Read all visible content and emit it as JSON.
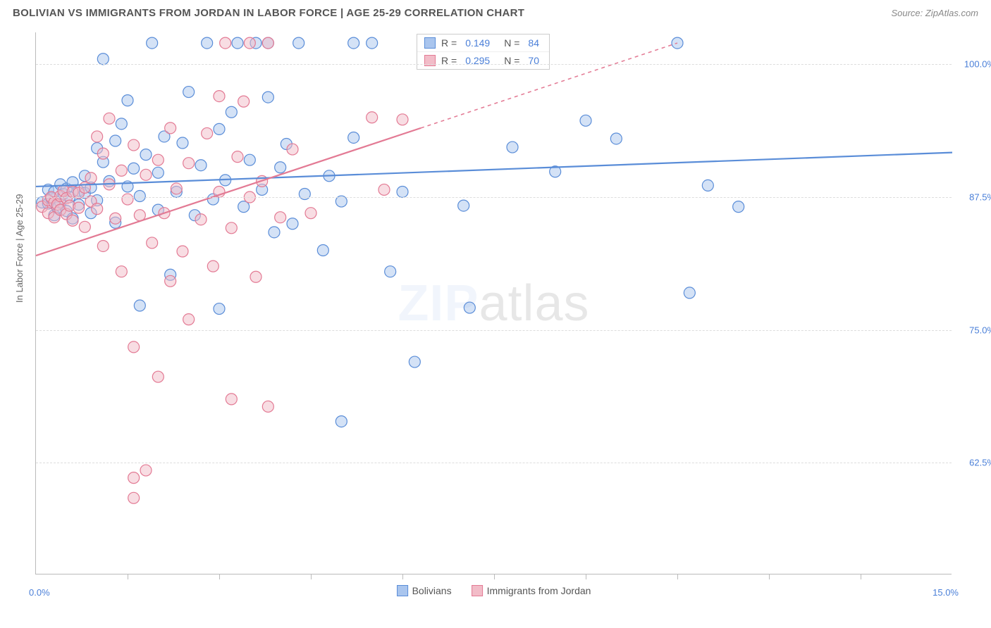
{
  "header": {
    "title": "BOLIVIAN VS IMMIGRANTS FROM JORDAN IN LABOR FORCE | AGE 25-29 CORRELATION CHART",
    "source": "Source: ZipAtlas.com"
  },
  "chart": {
    "type": "scatter",
    "ylabel": "In Labor Force | Age 25-29",
    "background_color": "#ffffff",
    "grid_color": "#dddddd",
    "axis_color": "#bbbbbb",
    "xlim": [
      0.0,
      15.0
    ],
    "ylim": [
      52.0,
      103.0
    ],
    "x_min_label": "0.0%",
    "x_max_label": "15.0%",
    "y_ticks": [
      {
        "v": 62.5,
        "label": "62.5%"
      },
      {
        "v": 75.0,
        "label": "75.0%"
      },
      {
        "v": 87.5,
        "label": "87.5%"
      },
      {
        "v": 100.0,
        "label": "100.0%"
      }
    ],
    "x_ticks_minor": [
      1.5,
      3.0,
      4.5,
      6.0,
      7.5,
      9.0,
      10.5,
      12.0,
      13.5
    ],
    "marker_radius": 8,
    "marker_opacity": 0.5,
    "line_width": 2.2,
    "watermark": {
      "bold": "ZIP",
      "rest": "atlas"
    },
    "stats": [
      {
        "color_fill": "#a9c5ee",
        "color_stroke": "#5a8dd8",
        "R_label": "R =",
        "R": "0.149",
        "N_label": "N =",
        "N": "84"
      },
      {
        "color_fill": "#f2bcc8",
        "color_stroke": "#e37a94",
        "R_label": "R =",
        "R": "0.295",
        "N_label": "N =",
        "N": "70"
      }
    ],
    "legend": [
      {
        "color_fill": "#a9c5ee",
        "color_stroke": "#5a8dd8",
        "label": "Bolivians"
      },
      {
        "color_fill": "#f2bcc8",
        "color_stroke": "#e37a94",
        "label": "Immigrants from Jordan"
      }
    ],
    "series": [
      {
        "name": "Bolivians",
        "color_fill": "#a9c5ee",
        "color_stroke": "#5a8dd8",
        "trend": {
          "x1": 0.0,
          "y1": 88.5,
          "x2": 15.0,
          "y2": 91.7,
          "dash_from_x": null
        },
        "points": [
          [
            0.1,
            87.0
          ],
          [
            0.2,
            88.2
          ],
          [
            0.2,
            86.9
          ],
          [
            0.25,
            87.4
          ],
          [
            0.3,
            88.0
          ],
          [
            0.3,
            85.8
          ],
          [
            0.35,
            86.5
          ],
          [
            0.4,
            88.7
          ],
          [
            0.4,
            87.0
          ],
          [
            0.45,
            87.8
          ],
          [
            0.5,
            88.3
          ],
          [
            0.5,
            86.2
          ],
          [
            0.55,
            87.5
          ],
          [
            0.6,
            88.9
          ],
          [
            0.6,
            85.5
          ],
          [
            0.7,
            88.1
          ],
          [
            0.7,
            86.8
          ],
          [
            0.8,
            87.9
          ],
          [
            0.8,
            89.5
          ],
          [
            0.9,
            86.0
          ],
          [
            0.9,
            88.4
          ],
          [
            1.0,
            92.1
          ],
          [
            1.0,
            87.2
          ],
          [
            1.1,
            90.8
          ],
          [
            1.1,
            100.5
          ],
          [
            1.2,
            89.0
          ],
          [
            1.3,
            92.8
          ],
          [
            1.3,
            85.1
          ],
          [
            1.4,
            94.4
          ],
          [
            1.5,
            88.5
          ],
          [
            1.5,
            96.6
          ],
          [
            1.6,
            90.2
          ],
          [
            1.7,
            87.6
          ],
          [
            1.7,
            77.3
          ],
          [
            1.8,
            91.5
          ],
          [
            1.9,
            102.0
          ],
          [
            2.0,
            86.3
          ],
          [
            2.0,
            89.8
          ],
          [
            2.1,
            93.2
          ],
          [
            2.2,
            80.2
          ],
          [
            2.3,
            88.0
          ],
          [
            2.4,
            92.6
          ],
          [
            2.5,
            97.4
          ],
          [
            2.6,
            85.8
          ],
          [
            2.7,
            90.5
          ],
          [
            2.8,
            102.0
          ],
          [
            2.9,
            87.3
          ],
          [
            3.0,
            93.9
          ],
          [
            3.0,
            77.0
          ],
          [
            3.1,
            89.1
          ],
          [
            3.2,
            95.5
          ],
          [
            3.3,
            102.0
          ],
          [
            3.4,
            86.6
          ],
          [
            3.5,
            91.0
          ],
          [
            3.6,
            102.0
          ],
          [
            3.7,
            88.2
          ],
          [
            3.8,
            96.9
          ],
          [
            3.8,
            102.0
          ],
          [
            3.9,
            84.2
          ],
          [
            4.0,
            90.3
          ],
          [
            4.1,
            92.5
          ],
          [
            4.2,
            85.0
          ],
          [
            4.3,
            102.0
          ],
          [
            4.4,
            87.8
          ],
          [
            4.7,
            82.5
          ],
          [
            4.8,
            89.5
          ],
          [
            5.0,
            87.1
          ],
          [
            5.0,
            66.4
          ],
          [
            5.2,
            93.1
          ],
          [
            5.2,
            102.0
          ],
          [
            5.5,
            102.0
          ],
          [
            5.8,
            80.5
          ],
          [
            6.0,
            88.0
          ],
          [
            6.2,
            72.0
          ],
          [
            7.0,
            86.7
          ],
          [
            7.1,
            77.1
          ],
          [
            7.8,
            92.2
          ],
          [
            8.5,
            89.9
          ],
          [
            9.0,
            94.7
          ],
          [
            9.5,
            93.0
          ],
          [
            10.5,
            102.0
          ],
          [
            10.7,
            78.5
          ],
          [
            11.0,
            88.6
          ],
          [
            11.5,
            86.6
          ]
        ]
      },
      {
        "name": "Immigrants from Jordan",
        "color_fill": "#f2bcc8",
        "color_stroke": "#e37a94",
        "trend": {
          "x1": 0.0,
          "y1": 82.0,
          "x2": 10.5,
          "y2": 102.0,
          "dash_from_x": 6.3
        },
        "points": [
          [
            0.1,
            86.6
          ],
          [
            0.2,
            87.2
          ],
          [
            0.2,
            86.0
          ],
          [
            0.25,
            87.5
          ],
          [
            0.3,
            87.0
          ],
          [
            0.3,
            85.6
          ],
          [
            0.35,
            86.8
          ],
          [
            0.4,
            87.6
          ],
          [
            0.4,
            86.3
          ],
          [
            0.45,
            88.1
          ],
          [
            0.5,
            87.4
          ],
          [
            0.5,
            85.9
          ],
          [
            0.55,
            86.7
          ],
          [
            0.6,
            88.0
          ],
          [
            0.6,
            85.3
          ],
          [
            0.7,
            87.9
          ],
          [
            0.7,
            86.5
          ],
          [
            0.8,
            88.4
          ],
          [
            0.8,
            84.7
          ],
          [
            0.9,
            87.1
          ],
          [
            0.9,
            89.3
          ],
          [
            1.0,
            93.2
          ],
          [
            1.0,
            86.4
          ],
          [
            1.1,
            91.6
          ],
          [
            1.1,
            82.9
          ],
          [
            1.2,
            88.7
          ],
          [
            1.2,
            94.9
          ],
          [
            1.3,
            85.5
          ],
          [
            1.4,
            90.0
          ],
          [
            1.4,
            80.5
          ],
          [
            1.5,
            87.3
          ],
          [
            1.6,
            92.4
          ],
          [
            1.6,
            73.4
          ],
          [
            1.6,
            61.1
          ],
          [
            1.6,
            59.2
          ],
          [
            1.7,
            85.8
          ],
          [
            1.8,
            89.6
          ],
          [
            1.8,
            61.8
          ],
          [
            1.9,
            83.2
          ],
          [
            2.0,
            91.0
          ],
          [
            2.0,
            70.6
          ],
          [
            2.1,
            86.0
          ],
          [
            2.2,
            94.0
          ],
          [
            2.2,
            79.6
          ],
          [
            2.3,
            88.3
          ],
          [
            2.4,
            82.4
          ],
          [
            2.5,
            90.7
          ],
          [
            2.5,
            76.0
          ],
          [
            2.7,
            85.4
          ],
          [
            2.8,
            93.5
          ],
          [
            2.9,
            81.0
          ],
          [
            3.0,
            88.0
          ],
          [
            3.0,
            97.0
          ],
          [
            3.1,
            102.0
          ],
          [
            3.2,
            84.6
          ],
          [
            3.2,
            68.5
          ],
          [
            3.3,
            91.3
          ],
          [
            3.4,
            96.5
          ],
          [
            3.5,
            87.5
          ],
          [
            3.5,
            102.0
          ],
          [
            3.6,
            80.0
          ],
          [
            3.7,
            89.0
          ],
          [
            3.8,
            67.8
          ],
          [
            3.8,
            102.0
          ],
          [
            4.0,
            85.6
          ],
          [
            4.2,
            92.0
          ],
          [
            4.5,
            86.0
          ],
          [
            5.5,
            95.0
          ],
          [
            5.7,
            88.2
          ],
          [
            6.0,
            94.8
          ]
        ]
      }
    ]
  }
}
